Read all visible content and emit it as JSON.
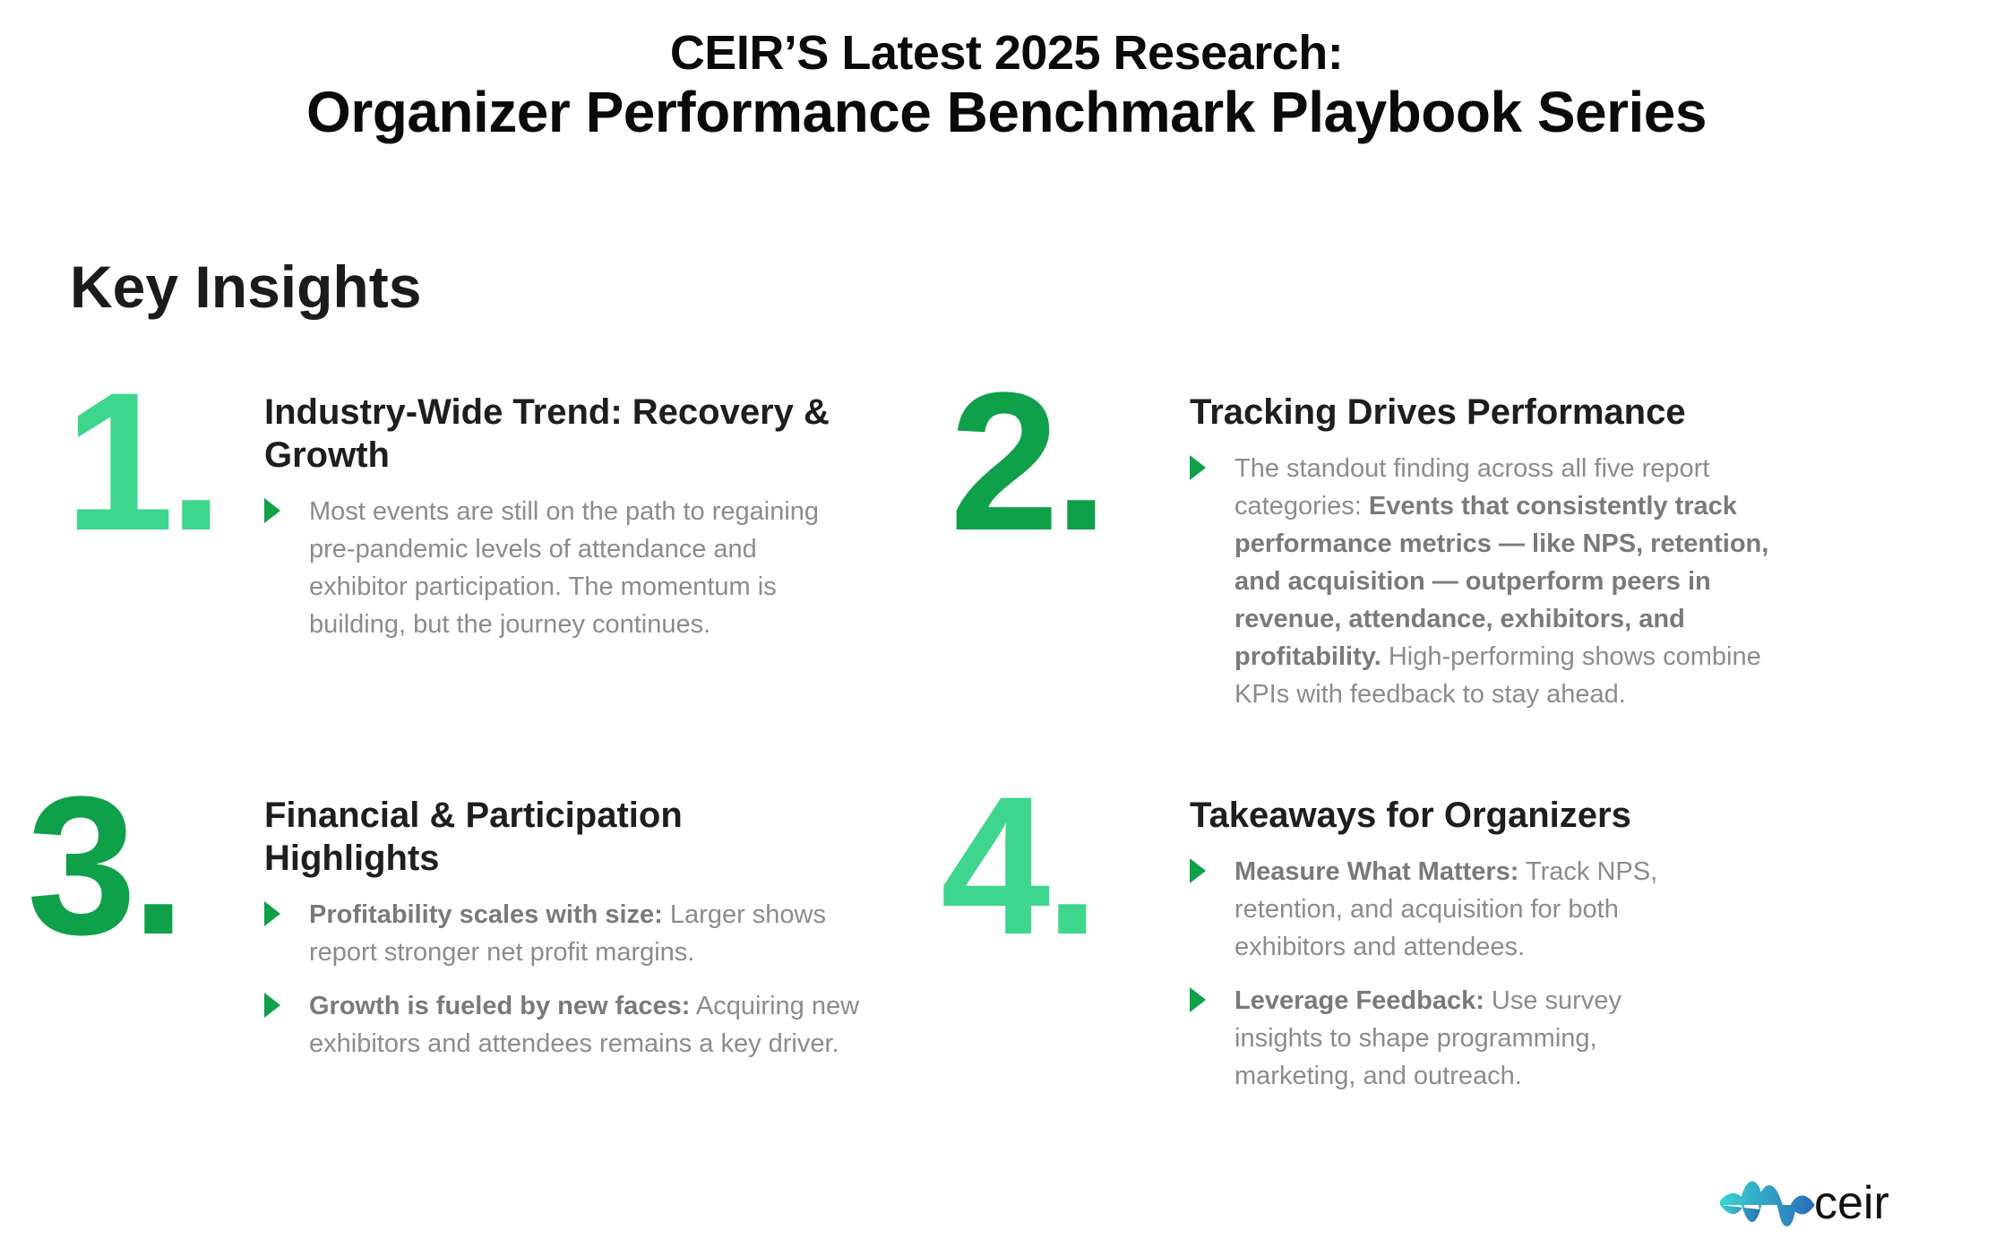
{
  "header": {
    "line1": "CEIR’S Latest 2025 Research:",
    "line2": "Organizer Performance Benchmark Playbook Series"
  },
  "section_title": "Key Insights",
  "colors": {
    "green_light": "#3dd68c",
    "green_dark": "#0fa04a",
    "text_gray": "#8c8c8c"
  },
  "insights": [
    {
      "number": "1.",
      "heading": "Industry-Wide Trend: Recovery & Growth",
      "bullets": [
        {
          "bold": "",
          "text": "Most events are still on the path to regaining pre-pandemic levels of attendance and exhibitor participation. The momentum is building, but the journey continues."
        }
      ]
    },
    {
      "number": "2.",
      "heading": "Tracking Drives Performance",
      "bullets": [
        {
          "pre": "The standout finding across all five report categories: ",
          "bold": "Events that consistently track performance metrics — like NPS, retention, and acquisition — outperform peers in revenue, attendance, exhibitors, and profitability.",
          "text": " High-performing shows combine KPIs with feedback to stay ahead."
        }
      ]
    },
    {
      "number": "3.",
      "heading": "Financial & Participation Highlights",
      "bullets": [
        {
          "bold": "Profitability scales with size:",
          "text": " Larger shows report stronger net profit margins."
        },
        {
          "bold": "Growth is fueled by new faces:",
          "text": " Acquiring new exhibitors and attendees remains a key driver."
        }
      ]
    },
    {
      "number": "4.",
      "heading": "Takeaways for Organizers",
      "bullets": [
        {
          "bold": "Measure What Matters:",
          "text": " Track NPS, retention, and acquisition for both exhibitors and attendees."
        },
        {
          "bold": "Leverage Feedback:",
          "text": " Use survey insights to shape programming, marketing, and outreach."
        }
      ]
    }
  ],
  "logo": {
    "text": "ceir"
  }
}
